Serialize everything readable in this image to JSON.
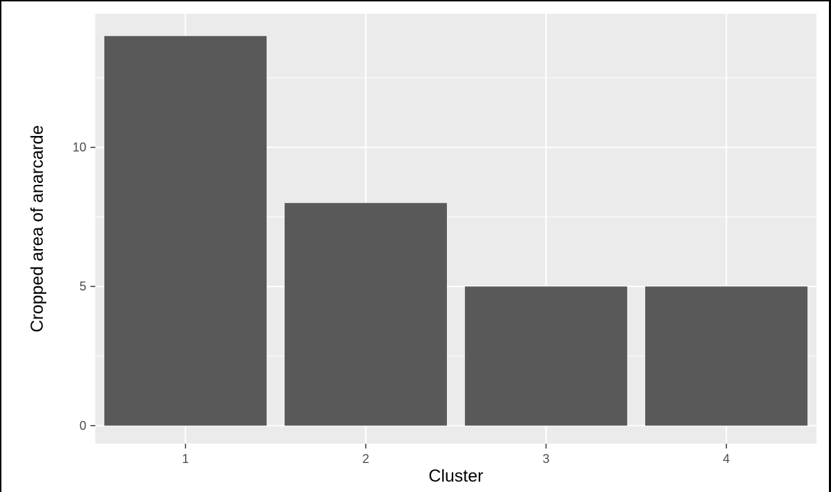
{
  "chart_data": {
    "type": "bar",
    "categories": [
      "1",
      "2",
      "3",
      "4"
    ],
    "values": [
      14,
      8,
      5,
      5
    ],
    "xlabel": "Cluster",
    "ylabel": "Cropped area of anarcarde",
    "ylim": [
      -0.65,
      14.8
    ],
    "yticks": [
      0,
      5,
      10
    ],
    "grid": true,
    "colors": {
      "panel": "#ebebeb",
      "gridline": "#ffffff",
      "bar": "#595959",
      "tick_text": "#4d4d4d",
      "title_text": "#000000"
    }
  }
}
